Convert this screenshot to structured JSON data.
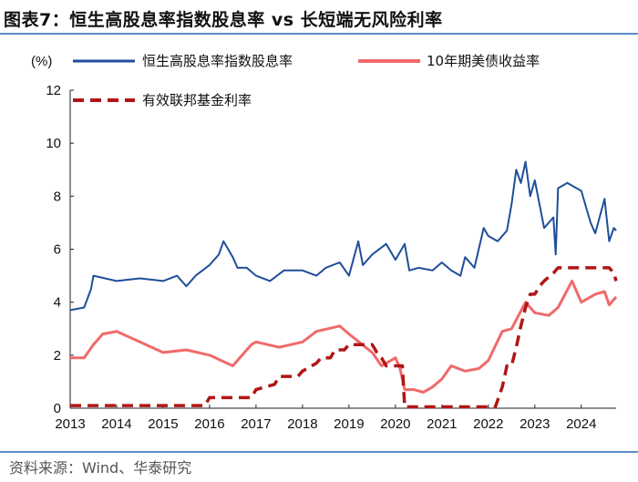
{
  "header": {
    "title": "图表7：恒生高股息率指数股息率 vs 长短端无风险利率"
  },
  "footer": {
    "source": "资料来源：Wind、华泰研究"
  },
  "colors": {
    "hs_dividend": "#1f4e9a",
    "us10y": "#f06a6a",
    "fed_funds": "#b01616",
    "rule": "#5b8ec7"
  },
  "chart_data": {
    "type": "line",
    "title": "恒生高股息率指数股息率 vs 长短端无风险利率",
    "ylabel": "(%)",
    "xlabel": "",
    "ylim": [
      0,
      12
    ],
    "xlim": [
      2013.0,
      2024.75
    ],
    "yticks": [
      "0",
      "2",
      "4",
      "6",
      "8",
      "10",
      "12"
    ],
    "xticks": [
      "2013",
      "2014",
      "2015",
      "2016",
      "2017",
      "2018",
      "2019",
      "2020",
      "2021",
      "2022",
      "2023",
      "2024"
    ],
    "grid": false,
    "legend_position": "top-left",
    "series": [
      {
        "name": "恒生高股息率指数股息率",
        "style": "solid",
        "x": [
          2013.0,
          2013.3,
          2013.45,
          2013.5,
          2014.0,
          2014.5,
          2015.0,
          2015.3,
          2015.5,
          2015.7,
          2016.0,
          2016.2,
          2016.3,
          2016.5,
          2016.6,
          2016.8,
          2017.0,
          2017.3,
          2017.6,
          2018.0,
          2018.3,
          2018.5,
          2018.8,
          2019.0,
          2019.2,
          2019.3,
          2019.5,
          2019.8,
          2020.0,
          2020.2,
          2020.3,
          2020.5,
          2020.8,
          2021.0,
          2021.2,
          2021.4,
          2021.5,
          2021.7,
          2021.9,
          2022.0,
          2022.2,
          2022.4,
          2022.5,
          2022.6,
          2022.7,
          2022.8,
          2022.9,
          2023.0,
          2023.2,
          2023.4,
          2023.45,
          2023.5,
          2023.7,
          2024.0,
          2024.2,
          2024.3,
          2024.5,
          2024.6,
          2024.7,
          2024.75
        ],
        "values": [
          3.7,
          3.8,
          4.5,
          5.0,
          4.8,
          4.9,
          4.8,
          5.0,
          4.6,
          5.0,
          5.4,
          5.8,
          6.3,
          5.7,
          5.3,
          5.3,
          5.0,
          4.8,
          5.2,
          5.2,
          5.0,
          5.3,
          5.5,
          5.0,
          6.3,
          5.4,
          5.8,
          6.2,
          5.6,
          6.2,
          5.2,
          5.3,
          5.2,
          5.5,
          5.2,
          5.0,
          5.7,
          5.3,
          6.8,
          6.5,
          6.3,
          6.7,
          7.7,
          9.0,
          8.5,
          9.3,
          8.0,
          8.6,
          6.8,
          7.2,
          5.8,
          8.3,
          8.5,
          8.2,
          7.0,
          6.6,
          7.9,
          6.3,
          6.8,
          6.7
        ]
      },
      {
        "name": "10年期美债收益率",
        "style": "solid",
        "x": [
          2013.0,
          2013.3,
          2013.5,
          2013.7,
          2014.0,
          2014.5,
          2015.0,
          2015.5,
          2016.0,
          2016.5,
          2016.9,
          2017.0,
          2017.5,
          2018.0,
          2018.3,
          2018.8,
          2019.0,
          2019.5,
          2019.7,
          2020.0,
          2020.1,
          2020.2,
          2020.4,
          2020.6,
          2020.8,
          2021.0,
          2021.2,
          2021.5,
          2021.8,
          2022.0,
          2022.3,
          2022.5,
          2022.8,
          2023.0,
          2023.3,
          2023.5,
          2023.8,
          2024.0,
          2024.3,
          2024.5,
          2024.6,
          2024.75
        ],
        "values": [
          1.9,
          1.9,
          2.4,
          2.8,
          2.9,
          2.5,
          2.1,
          2.2,
          2.0,
          1.6,
          2.4,
          2.5,
          2.3,
          2.5,
          2.9,
          3.1,
          2.8,
          2.1,
          1.6,
          1.9,
          1.5,
          0.7,
          0.7,
          0.6,
          0.8,
          1.1,
          1.6,
          1.4,
          1.5,
          1.8,
          2.9,
          3.0,
          4.0,
          3.6,
          3.5,
          3.8,
          4.8,
          4.0,
          4.3,
          4.4,
          3.9,
          4.2
        ]
      },
      {
        "name": "有效联邦基金利率",
        "style": "dashed",
        "x": [
          2013.0,
          2015.9,
          2016.0,
          2016.9,
          2017.0,
          2017.4,
          2017.5,
          2017.9,
          2018.0,
          2018.3,
          2018.4,
          2018.6,
          2018.7,
          2018.9,
          2019.0,
          2019.5,
          2019.6,
          2019.7,
          2019.8,
          2020.15,
          2020.2,
          2022.15,
          2022.2,
          2022.3,
          2022.4,
          2022.5,
          2022.6,
          2022.7,
          2022.8,
          2022.9,
          2023.0,
          2023.1,
          2023.2,
          2023.4,
          2023.5,
          2024.6,
          2024.7,
          2024.75
        ],
        "values": [
          0.1,
          0.1,
          0.4,
          0.4,
          0.7,
          0.9,
          1.2,
          1.2,
          1.4,
          1.7,
          1.9,
          1.9,
          2.2,
          2.2,
          2.4,
          2.4,
          2.1,
          1.9,
          1.6,
          1.6,
          0.05,
          0.05,
          0.3,
          0.8,
          1.6,
          1.6,
          2.3,
          3.1,
          3.8,
          4.3,
          4.3,
          4.6,
          4.8,
          5.1,
          5.3,
          5.3,
          5.1,
          4.8
        ]
      }
    ]
  }
}
